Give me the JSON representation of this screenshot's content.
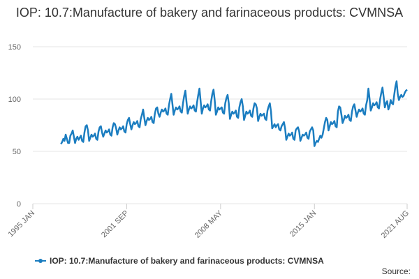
{
  "chart_data": {
    "type": "line",
    "title": "IOP: 10.7:Manufacture of bakery and farinaceous products: CVMNSA",
    "source": "Source:",
    "xlim": [
      "1995 JAN",
      "2021 AUG"
    ],
    "xticks": [
      "1995 JAN",
      "2001 SEP",
      "2008 MAY",
      "2015 JAN",
      "2021 AUG"
    ],
    "ylim": [
      0,
      150
    ],
    "yticks": [
      0,
      50,
      100,
      150
    ],
    "grid": true,
    "x": [
      "1997 JAN",
      "1997 FEB",
      "1997 MAR",
      "1997 APR",
      "1997 MAY",
      "1997 JUN",
      "1997 JUL",
      "1997 AUG",
      "1997 SEP",
      "1997 OCT",
      "1997 NOV",
      "1997 DEC",
      "1998 JAN",
      "1998 FEB",
      "1998 MAR",
      "1998 APR",
      "1998 MAY",
      "1998 JUN",
      "1998 JUL",
      "1998 AUG",
      "1998 SEP",
      "1998 OCT",
      "1998 NOV",
      "1998 DEC",
      "1999 JAN",
      "1999 FEB",
      "1999 MAR",
      "1999 APR",
      "1999 MAY",
      "1999 JUN",
      "1999 JUL",
      "1999 AUG",
      "1999 SEP",
      "1999 OCT",
      "1999 NOV",
      "1999 DEC",
      "2000 JAN",
      "2000 FEB",
      "2000 MAR",
      "2000 APR",
      "2000 MAY",
      "2000 JUN",
      "2000 JUL",
      "2000 AUG",
      "2000 SEP",
      "2000 OCT",
      "2000 NOV",
      "2000 DEC",
      "2001 JAN",
      "2001 FEB",
      "2001 MAR",
      "2001 APR",
      "2001 MAY",
      "2001 JUN",
      "2001 JUL",
      "2001 AUG",
      "2001 SEP",
      "2001 OCT",
      "2001 NOV",
      "2001 DEC",
      "2002 JAN",
      "2002 FEB",
      "2002 MAR",
      "2002 APR",
      "2002 MAY",
      "2002 JUN",
      "2002 JUL",
      "2002 AUG",
      "2002 SEP",
      "2002 OCT",
      "2002 NOV",
      "2002 DEC",
      "2003 JAN",
      "2003 FEB",
      "2003 MAR",
      "2003 APR",
      "2003 MAY",
      "2003 JUN",
      "2003 JUL",
      "2003 AUG",
      "2003 SEP",
      "2003 OCT",
      "2003 NOV",
      "2003 DEC",
      "2004 JAN",
      "2004 FEB",
      "2004 MAR",
      "2004 APR",
      "2004 MAY",
      "2004 JUN",
      "2004 JUL",
      "2004 AUG",
      "2004 SEP",
      "2004 OCT",
      "2004 NOV",
      "2004 DEC",
      "2005 JAN",
      "2005 FEB",
      "2005 MAR",
      "2005 APR",
      "2005 MAY",
      "2005 JUN",
      "2005 JUL",
      "2005 AUG",
      "2005 SEP",
      "2005 OCT",
      "2005 NOV",
      "2005 DEC",
      "2006 JAN",
      "2006 FEB",
      "2006 MAR",
      "2006 APR",
      "2006 MAY",
      "2006 JUN",
      "2006 JUL",
      "2006 AUG",
      "2006 SEP",
      "2006 OCT",
      "2006 NOV",
      "2006 DEC",
      "2007 JAN",
      "2007 FEB",
      "2007 MAR",
      "2007 APR",
      "2007 MAY",
      "2007 JUN",
      "2007 JUL",
      "2007 AUG",
      "2007 SEP",
      "2007 OCT",
      "2007 NOV",
      "2007 DEC",
      "2008 JAN",
      "2008 FEB",
      "2008 MAR",
      "2008 APR",
      "2008 MAY",
      "2008 JUN",
      "2008 JUL",
      "2008 AUG",
      "2008 SEP",
      "2008 OCT",
      "2008 NOV",
      "2008 DEC",
      "2009 JAN",
      "2009 FEB",
      "2009 MAR",
      "2009 APR",
      "2009 MAY",
      "2009 JUN",
      "2009 JUL",
      "2009 AUG",
      "2009 SEP",
      "2009 OCT",
      "2009 NOV",
      "2009 DEC",
      "2010 JAN",
      "2010 FEB",
      "2010 MAR",
      "2010 APR",
      "2010 MAY",
      "2010 JUN",
      "2010 JUL",
      "2010 AUG",
      "2010 SEP",
      "2010 OCT",
      "2010 NOV",
      "2010 DEC",
      "2011 JAN",
      "2011 FEB",
      "2011 MAR",
      "2011 APR",
      "2011 MAY",
      "2011 JUN",
      "2011 JUL",
      "2011 AUG",
      "2011 SEP",
      "2011 OCT",
      "2011 NOV",
      "2011 DEC",
      "2012 JAN",
      "2012 FEB",
      "2012 MAR",
      "2012 APR",
      "2012 MAY",
      "2012 JUN",
      "2012 JUL",
      "2012 AUG",
      "2012 SEP",
      "2012 OCT",
      "2012 NOV",
      "2012 DEC",
      "2013 JAN",
      "2013 FEB",
      "2013 MAR",
      "2013 APR",
      "2013 MAY",
      "2013 JUN",
      "2013 JUL",
      "2013 AUG",
      "2013 SEP",
      "2013 OCT",
      "2013 NOV",
      "2013 DEC",
      "2014 JAN",
      "2014 FEB",
      "2014 MAR",
      "2014 APR",
      "2014 MAY",
      "2014 JUN",
      "2014 JUL",
      "2014 AUG",
      "2014 SEP",
      "2014 OCT",
      "2014 NOV",
      "2014 DEC",
      "2015 JAN",
      "2015 FEB",
      "2015 MAR",
      "2015 APR",
      "2015 MAY",
      "2015 JUN",
      "2015 JUL",
      "2015 AUG",
      "2015 SEP",
      "2015 OCT",
      "2015 NOV",
      "2015 DEC",
      "2016 JAN",
      "2016 FEB",
      "2016 MAR",
      "2016 APR",
      "2016 MAY",
      "2016 JUN",
      "2016 JUL",
      "2016 AUG",
      "2016 SEP",
      "2016 OCT",
      "2016 NOV",
      "2016 DEC",
      "2017 JAN",
      "2017 FEB",
      "2017 MAR",
      "2017 APR",
      "2017 MAY",
      "2017 JUN",
      "2017 JUL",
      "2017 AUG",
      "2017 SEP",
      "2017 OCT",
      "2017 NOV",
      "2017 DEC",
      "2018 JAN",
      "2018 FEB",
      "2018 MAR",
      "2018 APR",
      "2018 MAY",
      "2018 JUN",
      "2018 JUL",
      "2018 AUG",
      "2018 SEP",
      "2018 OCT",
      "2018 NOV",
      "2018 DEC",
      "2019 JAN",
      "2019 FEB",
      "2019 MAR",
      "2019 APR",
      "2019 MAY",
      "2019 JUN",
      "2019 JUL",
      "2019 AUG",
      "2019 SEP",
      "2019 OCT",
      "2019 NOV",
      "2019 DEC",
      "2020 JAN",
      "2020 FEB",
      "2020 MAR",
      "2020 APR",
      "2020 MAY",
      "2020 JUN",
      "2020 JUL",
      "2020 AUG",
      "2020 SEP",
      "2020 OCT",
      "2020 NOV",
      "2020 DEC",
      "2021 JAN",
      "2021 FEB",
      "2021 MAR",
      "2021 APR",
      "2021 MAY",
      "2021 JUN",
      "2021 JUL",
      "2021 AUG"
    ],
    "series": [
      {
        "name": "IOP: 10.7:Manufacture of bakery and farinaceous products: CVMNSA",
        "color": "#1b7dc0",
        "values": [
          57,
          59,
          62,
          60,
          66,
          62,
          58,
          58,
          65,
          67,
          70,
          64,
          58,
          62,
          64,
          61,
          63,
          65,
          60,
          59,
          68,
          74,
          75,
          70,
          60,
          63,
          66,
          64,
          65,
          67,
          62,
          61,
          69,
          73,
          74,
          68,
          64,
          67,
          70,
          68,
          69,
          71,
          66,
          65,
          73,
          77,
          76,
          72,
          66,
          70,
          73,
          71,
          72,
          74,
          69,
          68,
          76,
          80,
          82,
          76,
          71,
          75,
          78,
          76,
          77,
          79,
          74,
          73,
          81,
          85,
          90,
          82,
          75,
          79,
          82,
          80,
          81,
          83,
          78,
          77,
          86,
          91,
          92,
          86,
          83,
          87,
          90,
          88,
          89,
          91,
          86,
          85,
          94,
          100,
          105,
          95,
          85,
          89,
          92,
          90,
          91,
          93,
          88,
          87,
          96,
          103,
          108,
          97,
          86,
          90,
          93,
          91,
          92,
          94,
          89,
          88,
          97,
          104,
          110,
          98,
          86,
          91,
          94,
          92,
          93,
          95,
          90,
          89,
          98,
          105,
          109,
          99,
          85,
          88,
          92,
          90,
          91,
          92,
          87,
          86,
          96,
          101,
          104,
          96,
          81,
          85,
          88,
          86,
          87,
          89,
          83,
          82,
          92,
          97,
          100,
          93,
          80,
          84,
          88,
          86,
          87,
          89,
          84,
          83,
          91,
          96,
          95,
          91,
          79,
          83,
          86,
          84,
          85,
          86,
          81,
          80,
          89,
          93,
          96,
          88,
          72,
          74,
          76,
          73,
          75,
          76,
          71,
          70,
          74,
          76,
          78,
          72,
          61,
          64,
          67,
          65,
          66,
          68,
          62,
          61,
          70,
          72,
          73,
          69,
          60,
          63,
          66,
          65,
          66,
          68,
          63,
          62,
          69,
          71,
          73,
          70,
          55,
          58,
          60,
          59,
          62,
          65,
          63,
          66,
          72,
          78,
          82,
          80,
          70,
          74,
          78,
          76,
          77,
          79,
          74,
          73,
          88,
          93,
          92,
          85,
          77,
          80,
          84,
          82,
          83,
          85,
          80,
          79,
          88,
          93,
          95,
          89,
          83,
          87,
          90,
          88,
          89,
          91,
          86,
          85,
          94,
          99,
          110,
          100,
          89,
          92,
          96,
          94,
          95,
          97,
          92,
          91,
          100,
          106,
          111,
          102,
          92,
          96,
          98,
          90,
          93,
          99,
          96,
          95,
          104,
          112,
          117,
          105,
          99,
          102,
          104,
          102,
          103,
          106,
          108,
          109
        ]
      }
    ]
  }
}
